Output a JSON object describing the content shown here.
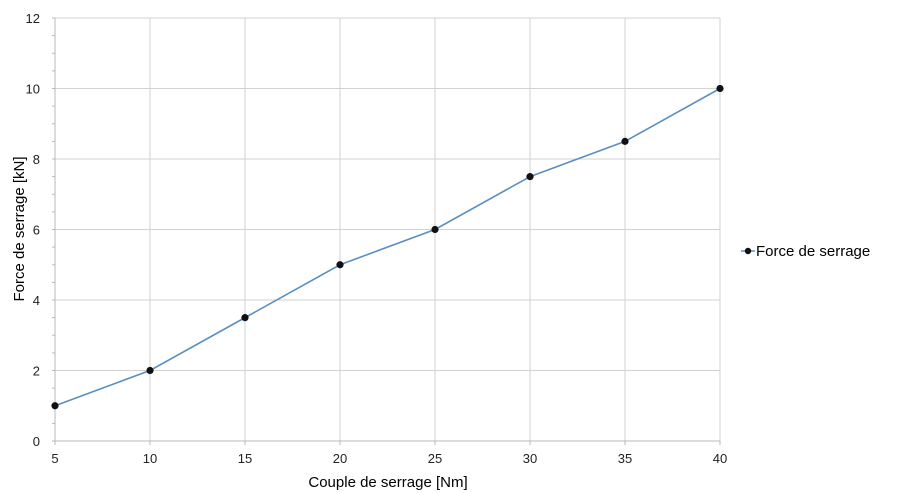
{
  "chart_data": {
    "type": "line",
    "title": "",
    "xlabel": "Couple de serrage [Nm]",
    "ylabel": "Force de serrage [kN]",
    "xlim": [
      5,
      40
    ],
    "ylim": [
      0,
      12
    ],
    "x_ticks": [
      "5",
      "10",
      "15",
      "20",
      "25",
      "30",
      "35",
      "40"
    ],
    "y_ticks": [
      "0",
      "2",
      "4",
      "6",
      "8",
      "10",
      "12"
    ],
    "grid": true,
    "legend_position": "right",
    "series": [
      {
        "name": "Force de serrage",
        "color": "#5b8fc2",
        "marker_color": "#111111",
        "x": [
          5,
          10,
          15,
          20,
          25,
          30,
          35,
          40
        ],
        "y": [
          1,
          2,
          3.5,
          5,
          6,
          7.5,
          8.5,
          10
        ]
      }
    ]
  }
}
